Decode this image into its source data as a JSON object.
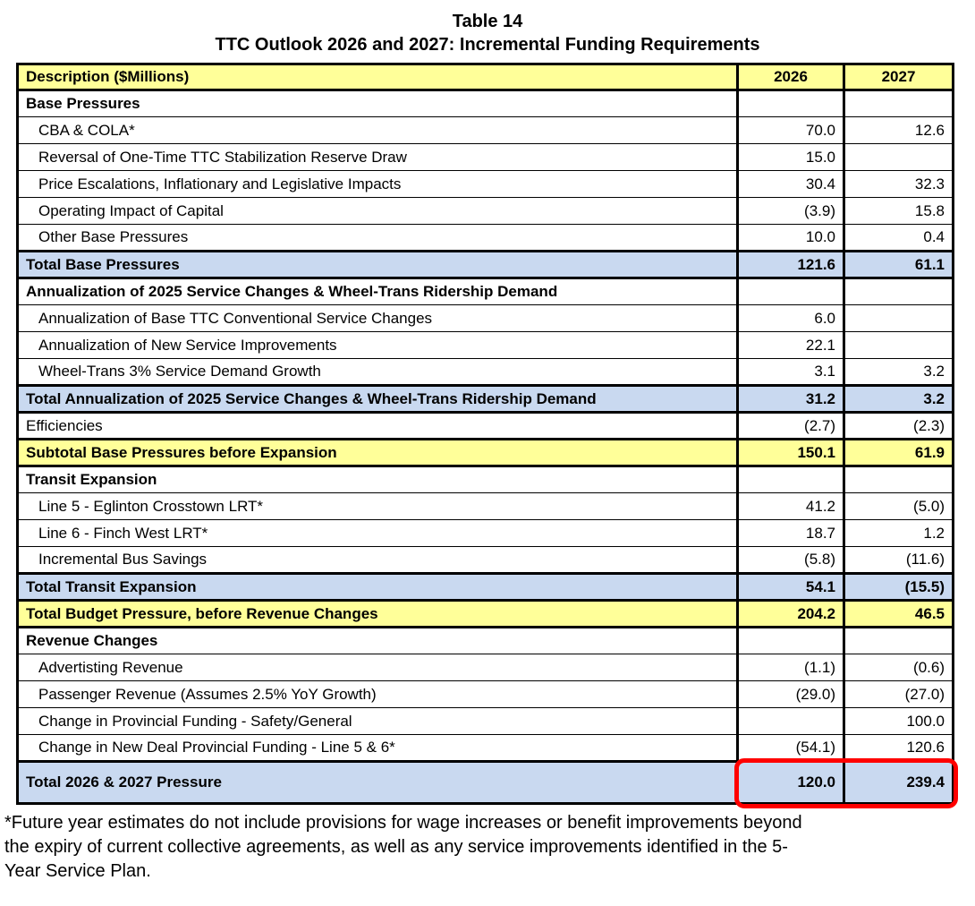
{
  "title": {
    "line1": "Table 14",
    "line2": "TTC Outlook 2026 and 2027: Incremental Funding Requirements"
  },
  "table": {
    "columns": [
      "Description ($Millions)",
      "2026",
      "2027"
    ],
    "rows": [
      {
        "label": "Base Pressures",
        "y2026": "",
        "y2027": "",
        "style": "section"
      },
      {
        "label": "CBA & COLA*",
        "y2026": "70.0",
        "y2027": "12.6",
        "style": "item"
      },
      {
        "label": "Reversal of One-Time TTC Stabilization Reserve Draw",
        "y2026": "15.0",
        "y2027": "",
        "style": "item"
      },
      {
        "label": "Price Escalations, Inflationary and Legislative Impacts",
        "y2026": "30.4",
        "y2027": "32.3",
        "style": "item"
      },
      {
        "label": "Operating Impact of Capital",
        "y2026": "(3.9)",
        "y2027": "15.8",
        "style": "item"
      },
      {
        "label": "Other Base Pressures",
        "y2026": "10.0",
        "y2027": "0.4",
        "style": "item"
      },
      {
        "label": "Total Base Pressures",
        "y2026": "121.6",
        "y2027": "61.1",
        "style": "total-blue"
      },
      {
        "label": "Annualization of 2025 Service Changes & Wheel-Trans Ridership Demand",
        "y2026": "",
        "y2027": "",
        "style": "section"
      },
      {
        "label": "Annualization of Base TTC Conventional Service Changes",
        "y2026": "6.0",
        "y2027": "",
        "style": "item"
      },
      {
        "label": "Annualization of New Service Improvements",
        "y2026": "22.1",
        "y2027": "",
        "style": "item"
      },
      {
        "label": "Wheel-Trans 3% Service Demand Growth",
        "y2026": "3.1",
        "y2027": "3.2",
        "style": "item"
      },
      {
        "label": "Total Annualization of 2025 Service Changes & Wheel-Trans Ridership Demand",
        "y2026": "31.2",
        "y2027": "3.2",
        "style": "total-blue"
      },
      {
        "label": "Efficiencies",
        "y2026": "(2.7)",
        "y2027": "(2.3)",
        "style": "item-flush"
      },
      {
        "label": "Subtotal Base Pressures before Expansion",
        "y2026": "150.1",
        "y2027": "61.9",
        "style": "total-yellow"
      },
      {
        "label": "Transit Expansion",
        "y2026": "",
        "y2027": "",
        "style": "section"
      },
      {
        "label": "Line 5 - Eglinton Crosstown LRT*",
        "y2026": "41.2",
        "y2027": "(5.0)",
        "style": "item"
      },
      {
        "label": "Line 6 - Finch West LRT*",
        "y2026": "18.7",
        "y2027": "1.2",
        "style": "item"
      },
      {
        "label": "Incremental Bus Savings",
        "y2026": "(5.8)",
        "y2027": "(11.6)",
        "style": "item"
      },
      {
        "label": "Total Transit Expansion",
        "y2026": "54.1",
        "y2027": "(15.5)",
        "style": "total-blue"
      },
      {
        "label": "Total Budget Pressure, before Revenue Changes",
        "y2026": "204.2",
        "y2027": "46.5",
        "style": "total-yellow"
      },
      {
        "label": "Revenue Changes",
        "y2026": "",
        "y2027": "",
        "style": "section"
      },
      {
        "label": "Advertisting Revenue",
        "y2026": "(1.1)",
        "y2027": "(0.6)",
        "style": "item"
      },
      {
        "label": "Passenger Revenue (Assumes 2.5% YoY Growth)",
        "y2026": "(29.0)",
        "y2027": "(27.0)",
        "style": "item"
      },
      {
        "label": "Change in Provincial Funding - Safety/General",
        "y2026": "",
        "y2027": "100.0",
        "style": "item"
      },
      {
        "label": "Change in New Deal Provincial Funding - Line 5 & 6*",
        "y2026": "(54.1)",
        "y2027": "120.6",
        "style": "item"
      },
      {
        "label": "Total 2026 & 2027 Pressure",
        "y2026": "120.0",
        "y2027": "239.4",
        "style": "grand-total",
        "highlighted": true
      }
    ]
  },
  "colors": {
    "header_fill": "#ffff99",
    "subtotal_fill": "#ffff99",
    "total_fill": "#c9d9f0",
    "highlight_border": "#ff0000",
    "border_color": "#000000",
    "text_color": "#000000"
  },
  "footnote": "*Future year estimates do not include provisions for wage increases or benefit improvements beyond\nthe expiry of current collective agreements, as well as any service improvements identified in the 5-\nYear Service Plan."
}
